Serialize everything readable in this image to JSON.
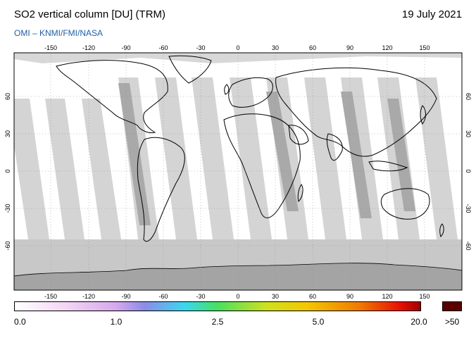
{
  "header": {
    "title": "SO2 vertical column [DU] (TRM)",
    "date": "19 July 2021",
    "credit": "OMI  –  KNMI/FMI/NASA"
  },
  "map": {
    "lon_ticks": [
      "-150",
      "-120",
      "-90",
      "-60",
      "-30",
      "0",
      "30",
      "60",
      "90",
      "120",
      "150"
    ],
    "lat_ticks": [
      "60",
      "30",
      "0",
      "-30",
      "-60"
    ],
    "colors": {
      "background": "#ffffff",
      "swath_light": "#d4d4d4",
      "swath_dark": "#a9a9a9",
      "polar_fill": "#c8c8c8",
      "antarctica": "#a4a4a4",
      "coast": "#000000"
    }
  },
  "colorbar": {
    "labels": [
      "0.0",
      "1.0",
      "2.5",
      "5.0",
      "20.0"
    ],
    "over_label": ">50",
    "over_color": "#5a0000",
    "gradient": [
      "#ffffff",
      "#f4d8f4",
      "#d6a8ec",
      "#8c8ce6",
      "#3ad8f0",
      "#48e060",
      "#cfe020",
      "#f4c800",
      "#f07a00",
      "#e81000",
      "#a00000"
    ]
  }
}
